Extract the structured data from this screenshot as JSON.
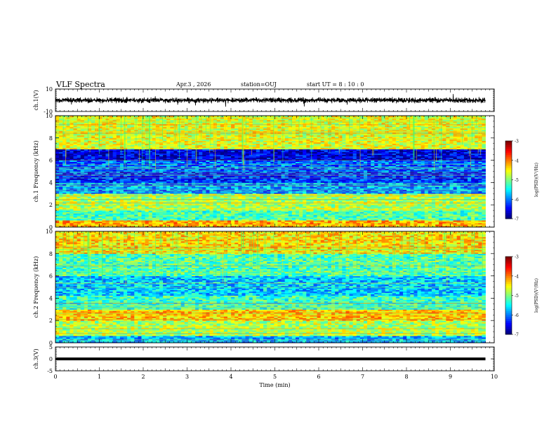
{
  "header": {
    "title": "VLF Spectra",
    "date": "Apr.3 , 2026",
    "station": "station=OUJ",
    "start_ut": "start UT = 8 : 10 : 0"
  },
  "chart_data": [
    {
      "type": "line",
      "panel": "ch1-waveform",
      "ylabel": "ch.1(V)",
      "ylim": [
        -10,
        10
      ],
      "yticks": [
        "10",
        "-10"
      ],
      "xlim": [
        0,
        10
      ],
      "trace": {
        "x_end": 9.8,
        "mean": 0,
        "amplitude": 3
      },
      "colors": {
        "trace": "#000000"
      }
    },
    {
      "type": "heatmap",
      "panel": "ch1-spectrogram",
      "ylabel": "ch.1 Frequency (kHz)",
      "ylim": [
        0,
        10
      ],
      "yticks": [
        "0",
        "2",
        "4",
        "6",
        "8",
        "10"
      ],
      "xlim": [
        0,
        10
      ],
      "data_x_end": 9.8,
      "colorbar": {
        "label": "log(PSD)(V²/Hz)",
        "ticks": [
          "-3",
          "-4",
          "-5",
          "-6",
          "-7"
        ],
        "range": [
          -7,
          -3
        ]
      },
      "bands": [
        {
          "f0": 0,
          "f1": 0.6,
          "level": -4.2
        },
        {
          "f0": 0.6,
          "f1": 1.5,
          "level": -5.2
        },
        {
          "f0": 1.5,
          "f1": 3,
          "level": -4.8
        },
        {
          "f0": 3,
          "f1": 4,
          "level": -5.9
        },
        {
          "f0": 4,
          "f1": 5,
          "level": -6.3
        },
        {
          "f0": 5,
          "f1": 6,
          "level": -6.1
        },
        {
          "f0": 6,
          "f1": 7,
          "level": -6.6
        },
        {
          "f0": 7,
          "f1": 10,
          "level": -4.6
        }
      ]
    },
    {
      "type": "heatmap",
      "panel": "ch2-spectrogram",
      "ylabel": "ch.2 Frequency (kHz)",
      "ylim": [
        0,
        10
      ],
      "yticks": [
        "0",
        "2",
        "4",
        "6",
        "8",
        "10"
      ],
      "xlim": [
        0,
        10
      ],
      "data_x_end": 9.8,
      "colorbar": {
        "label": "log(PSD)(V²/Hz)",
        "ticks": [
          "-3",
          "-4",
          "-5",
          "-6",
          "-7"
        ],
        "range": [
          -7,
          -3
        ]
      },
      "bands": [
        {
          "f0": 0,
          "f1": 0.6,
          "level": -5.8
        },
        {
          "f0": 0.6,
          "f1": 2,
          "level": -4.8
        },
        {
          "f0": 2,
          "f1": 3,
          "level": -4.3
        },
        {
          "f0": 3,
          "f1": 4.2,
          "level": -5.3
        },
        {
          "f0": 4.2,
          "f1": 6,
          "level": -5.7
        },
        {
          "f0": 6,
          "f1": 8,
          "level": -5.2
        },
        {
          "f0": 8,
          "f1": 10,
          "level": -4.4
        }
      ]
    },
    {
      "type": "line",
      "panel": "ch3-waveform",
      "ylabel": "ch.3(V)",
      "ylim": [
        -5,
        5
      ],
      "yticks": [
        "5",
        "0",
        "-5"
      ],
      "xlim": [
        0,
        10
      ],
      "trace": {
        "x_end": 9.8,
        "mean": 0,
        "amplitude": 0
      },
      "xlabel": "Time (min)",
      "xticks": [
        "0",
        "1",
        "2",
        "3",
        "4",
        "5",
        "6",
        "7",
        "8",
        "9",
        "10"
      ],
      "colors": {
        "trace": "#000000"
      }
    }
  ]
}
